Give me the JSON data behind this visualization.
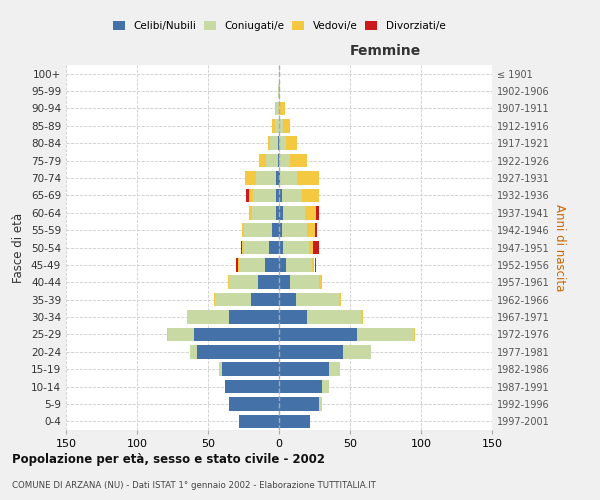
{
  "age_groups": [
    "0-4",
    "5-9",
    "10-14",
    "15-19",
    "20-24",
    "25-29",
    "30-34",
    "35-39",
    "40-44",
    "45-49",
    "50-54",
    "55-59",
    "60-64",
    "65-69",
    "70-74",
    "75-79",
    "80-84",
    "85-89",
    "90-94",
    "95-99",
    "100+"
  ],
  "birth_years": [
    "1997-2001",
    "1992-1996",
    "1987-1991",
    "1982-1986",
    "1977-1981",
    "1972-1976",
    "1967-1971",
    "1962-1966",
    "1957-1961",
    "1952-1956",
    "1947-1951",
    "1942-1946",
    "1937-1941",
    "1932-1936",
    "1927-1931",
    "1922-1926",
    "1917-1921",
    "1912-1916",
    "1907-1911",
    "1902-1906",
    "≤ 1901"
  ],
  "males": {
    "celibi": [
      28,
      35,
      38,
      40,
      58,
      60,
      35,
      20,
      15,
      10,
      7,
      5,
      2,
      2,
      2,
      1,
      1,
      0,
      0,
      0,
      0
    ],
    "coniugati": [
      0,
      0,
      0,
      2,
      5,
      18,
      30,
      25,
      20,
      18,
      18,
      20,
      17,
      16,
      14,
      8,
      5,
      3,
      2,
      1,
      0
    ],
    "vedovi": [
      0,
      0,
      0,
      0,
      0,
      1,
      0,
      1,
      1,
      1,
      1,
      1,
      2,
      3,
      8,
      5,
      2,
      2,
      1,
      0,
      0
    ],
    "divorziati": [
      0,
      0,
      0,
      0,
      0,
      0,
      0,
      0,
      0,
      1,
      1,
      0,
      0,
      2,
      0,
      0,
      0,
      0,
      0,
      0,
      0
    ]
  },
  "females": {
    "nubili": [
      22,
      28,
      30,
      35,
      45,
      55,
      20,
      12,
      8,
      5,
      3,
      2,
      3,
      2,
      1,
      0,
      0,
      0,
      0,
      0,
      0
    ],
    "coniugate": [
      0,
      2,
      5,
      8,
      20,
      40,
      38,
      30,
      20,
      18,
      18,
      18,
      15,
      14,
      12,
      8,
      5,
      3,
      1,
      0,
      0
    ],
    "vedove": [
      0,
      0,
      0,
      0,
      0,
      1,
      1,
      2,
      2,
      2,
      3,
      5,
      8,
      12,
      15,
      12,
      8,
      5,
      3,
      1,
      0
    ],
    "divorziate": [
      0,
      0,
      0,
      0,
      0,
      0,
      0,
      0,
      0,
      1,
      4,
      2,
      2,
      0,
      0,
      0,
      0,
      0,
      0,
      0,
      0
    ]
  },
  "colors": {
    "celibi_nubili": "#4472A8",
    "coniugati": "#C8D9A4",
    "vedovi": "#F5C842",
    "divorziati": "#CC1A1A"
  },
  "title": "Popolazione per età, sesso e stato civile - 2002",
  "subtitle": "COMUNE DI ARZANA (NU) - Dati ISTAT 1° gennaio 2002 - Elaborazione TUTTITALIA.IT",
  "xlabel_right": "Femmine",
  "ylabel_left": "Fasce di età",
  "ylabel_right": "Anni di nascita",
  "xlim": 150,
  "background_color": "#f0f0f0",
  "plot_bg": "#ffffff"
}
